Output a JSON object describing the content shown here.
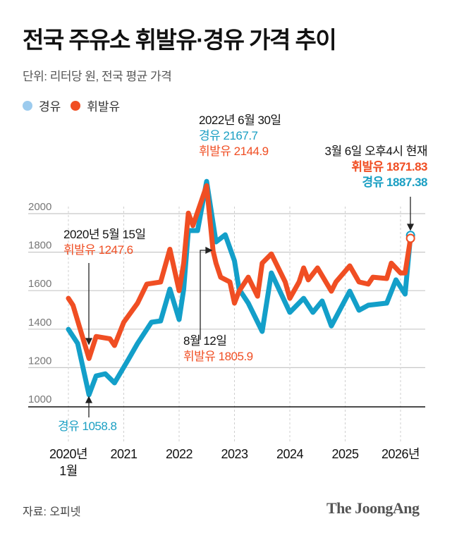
{
  "header": {
    "title": "전국 주유소 휘발유·경유 가격 추이",
    "subtitle": "단위: 리터당 원, 전국 평균 가격"
  },
  "legend": [
    {
      "label": "경유",
      "color": "#9ccbee"
    },
    {
      "label": "휘발유",
      "color": "#f04e23"
    }
  ],
  "annotations": {
    "peak": {
      "date": "2022년 6월 30일",
      "diesel": "경유 2167.7",
      "gasoline": "휘발유 2144.9"
    },
    "low": {
      "date": "2020년 5월 15일",
      "gasoline": "휘발유 1247.6",
      "diesel": "경유 1058.8"
    },
    "aug": {
      "date": "8월 12일",
      "gasoline": "휘발유 1805.9"
    },
    "now": {
      "date": "3월 6일 오후4시 현재",
      "gasoline": "휘발유 1871.83",
      "diesel": "경유 1887.38"
    }
  },
  "footer": {
    "source": "자료: 오피넷",
    "logo": "The JoongAng"
  },
  "chart_data": {
    "type": "line",
    "title": "전국 주유소 휘발유·경유 가격 추이",
    "ylabel": "단위: 리터당 원, 전국 평균 가격",
    "ylim": [
      1000,
      2000
    ],
    "yticks": [
      1000,
      1200,
      1400,
      1600,
      1800,
      2000
    ],
    "xticks": [
      {
        "year": 2020,
        "label": "2020년",
        "sub": "1월"
      },
      {
        "year": 2021,
        "label": "2021"
      },
      {
        "year": 2022,
        "label": "2022"
      },
      {
        "year": 2023,
        "label": "2023"
      },
      {
        "year": 2024,
        "label": "2024"
      },
      {
        "year": 2025,
        "label": "2025"
      },
      {
        "year": 2026,
        "label": "2026년"
      }
    ],
    "grid": true,
    "legend_position": "top-left",
    "series": [
      {
        "name": "경유",
        "color": "#139fc9",
        "points": [
          [
            "2020-01",
            1399
          ],
          [
            "2020-03",
            1326
          ],
          [
            "2020-05-15",
            1058.8
          ],
          [
            "2020-07",
            1157
          ],
          [
            "2020-09",
            1168
          ],
          [
            "2020-11",
            1121
          ],
          [
            "2021-02",
            1242
          ],
          [
            "2021-04",
            1326
          ],
          [
            "2021-07",
            1436
          ],
          [
            "2021-09",
            1443
          ],
          [
            "2021-11",
            1608
          ],
          [
            "2022-01",
            1450
          ],
          [
            "2022-02",
            1608
          ],
          [
            "2022-03",
            1912
          ],
          [
            "2022-05",
            1912
          ],
          [
            "2022-06-30",
            2167.7
          ],
          [
            "2022-09",
            1853
          ],
          [
            "2022-11",
            1890
          ],
          [
            "2023-01",
            1755
          ],
          [
            "2023-02",
            1608
          ],
          [
            "2023-04",
            1535
          ],
          [
            "2023-07",
            1388
          ],
          [
            "2023-09",
            1692
          ],
          [
            "2024-01",
            1487
          ],
          [
            "2024-04",
            1560
          ],
          [
            "2024-06",
            1487
          ],
          [
            "2024-08",
            1546
          ],
          [
            "2024-10",
            1417
          ],
          [
            "2025-02",
            1597
          ],
          [
            "2025-04",
            1498
          ],
          [
            "2025-06",
            1524
          ],
          [
            "2025-10",
            1535
          ],
          [
            "2025-12",
            1656
          ],
          [
            "2026-02",
            1582
          ],
          [
            "2026-03-06",
            1887.38
          ]
        ]
      },
      {
        "name": "휘발유",
        "color": "#f04e23",
        "points": [
          [
            "2020-01",
            1560
          ],
          [
            "2020-02",
            1524
          ],
          [
            "2020-05-15",
            1247.6
          ],
          [
            "2020-07",
            1362
          ],
          [
            "2020-10",
            1350
          ],
          [
            "2020-11",
            1315
          ],
          [
            "2021-01",
            1436
          ],
          [
            "2021-04",
            1535
          ],
          [
            "2021-06",
            1634
          ],
          [
            "2021-09",
            1645
          ],
          [
            "2021-11",
            1815
          ],
          [
            "2022-01",
            1600
          ],
          [
            "2022-02",
            1743
          ],
          [
            "2022-03",
            2003
          ],
          [
            "2022-04",
            1938
          ],
          [
            "2022-06-30",
            2144.9
          ],
          [
            "2022-08-12",
            1805.9
          ],
          [
            "2022-09",
            1743
          ],
          [
            "2022-10",
            1670
          ],
          [
            "2022-12",
            1645
          ],
          [
            "2023-01",
            1535
          ],
          [
            "2023-02",
            1597
          ],
          [
            "2023-04",
            1670
          ],
          [
            "2023-06",
            1571
          ],
          [
            "2023-07",
            1743
          ],
          [
            "2023-09",
            1791
          ],
          [
            "2023-12",
            1645
          ],
          [
            "2024-01",
            1560
          ],
          [
            "2024-03",
            1645
          ],
          [
            "2024-04",
            1718
          ],
          [
            "2024-05",
            1656
          ],
          [
            "2024-07",
            1718
          ],
          [
            "2024-10",
            1597
          ],
          [
            "2024-11",
            1645
          ],
          [
            "2025-02",
            1729
          ],
          [
            "2025-04",
            1645
          ],
          [
            "2025-06",
            1634
          ],
          [
            "2025-07",
            1670
          ],
          [
            "2025-10",
            1663
          ],
          [
            "2025-11",
            1743
          ],
          [
            "2026-01",
            1692
          ],
          [
            "2026-02",
            1692
          ],
          [
            "2026-03-06",
            1871.83
          ]
        ]
      }
    ]
  }
}
